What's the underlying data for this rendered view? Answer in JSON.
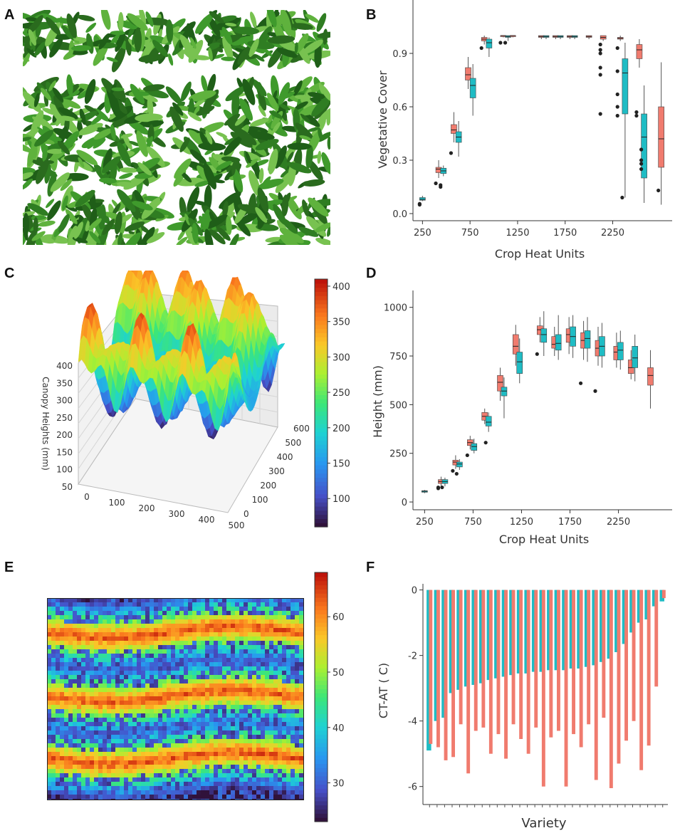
{
  "panel_letters": [
    "A",
    "B",
    "C",
    "D",
    "E",
    "F"
  ],
  "colors": {
    "red": "#f07b6e",
    "teal": "#1fbcc4",
    "leaf": "#3d8b2a",
    "leaf_dark": "#2a6b1e"
  },
  "chart_data": [
    {
      "panel": "B",
      "type": "box",
      "ylabel": "Vegetative Cover",
      "xlabel": "Crop Heat Units",
      "xticks": [
        "250",
        "750",
        "1250",
        "1750",
        "2250"
      ],
      "xtick_values": [
        250,
        750,
        1250,
        1750,
        2250
      ],
      "yticks": [
        "0.0",
        "0.3",
        "0.6",
        "0.9"
      ],
      "ytick_values": [
        0,
        0.3,
        0.6,
        0.9
      ],
      "xlim": [
        150,
        2830
      ],
      "ylim": [
        -0.04,
        1.16
      ],
      "series_colors": [
        "#f07b6e",
        "#1fbcc4"
      ],
      "boxes": [
        {
          "x": 250,
          "s": 1,
          "min": 0.07,
          "q1": 0.075,
          "med": 0.08,
          "q3": 0.09,
          "max": 0.1,
          "out": [
            0.05,
            0.055
          ]
        },
        {
          "x": 420,
          "s": 0,
          "min": 0.2,
          "q1": 0.23,
          "med": 0.25,
          "q3": 0.26,
          "max": 0.3,
          "out": [
            0.17
          ]
        },
        {
          "x": 470,
          "s": 1,
          "min": 0.21,
          "q1": 0.225,
          "med": 0.24,
          "q3": 0.255,
          "max": 0.27,
          "out": [
            0.15,
            0.16
          ]
        },
        {
          "x": 580,
          "s": 0,
          "min": 0.4,
          "q1": 0.45,
          "med": 0.47,
          "q3": 0.5,
          "max": 0.57,
          "out": [
            0.34
          ]
        },
        {
          "x": 630,
          "s": 1,
          "min": 0.32,
          "q1": 0.4,
          "med": 0.43,
          "q3": 0.46,
          "max": 0.52,
          "out": []
        },
        {
          "x": 730,
          "s": 0,
          "min": 0.7,
          "q1": 0.75,
          "med": 0.78,
          "q3": 0.82,
          "max": 0.88,
          "out": []
        },
        {
          "x": 780,
          "s": 1,
          "min": 0.55,
          "q1": 0.65,
          "med": 0.72,
          "q3": 0.76,
          "max": 0.84,
          "out": []
        },
        {
          "x": 900,
          "s": 0,
          "min": 0.95,
          "q1": 0.97,
          "med": 0.98,
          "q3": 0.99,
          "max": 1.0,
          "out": [
            0.93
          ]
        },
        {
          "x": 950,
          "s": 1,
          "min": 0.88,
          "q1": 0.93,
          "med": 0.96,
          "q3": 0.98,
          "max": 0.99,
          "out": []
        },
        {
          "x": 1100,
          "s": 0,
          "min": 0.99,
          "q1": 0.995,
          "med": 1.0,
          "q3": 1.0,
          "max": 1.0,
          "out": [
            0.96
          ]
        },
        {
          "x": 1150,
          "s": 1,
          "min": 0.97,
          "q1": 0.99,
          "med": 0.995,
          "q3": 1.0,
          "max": 1.0,
          "out": [
            0.96
          ]
        },
        {
          "x": 1200,
          "s": 0,
          "min": 0.99,
          "q1": 0.995,
          "med": 1.0,
          "q3": 1.0,
          "max": 1.0,
          "out": []
        },
        {
          "x": 1500,
          "s": 0,
          "min": 0.98,
          "q1": 0.99,
          "med": 0.995,
          "q3": 1.0,
          "max": 1.0,
          "out": []
        },
        {
          "x": 1550,
          "s": 1,
          "min": 0.98,
          "q1": 0.99,
          "med": 0.995,
          "q3": 1.0,
          "max": 1.0,
          "out": []
        },
        {
          "x": 1650,
          "s": 0,
          "min": 0.98,
          "q1": 0.99,
          "med": 0.995,
          "q3": 1.0,
          "max": 1.0,
          "out": []
        },
        {
          "x": 1700,
          "s": 1,
          "min": 0.98,
          "q1": 0.99,
          "med": 0.995,
          "q3": 1.0,
          "max": 1.0,
          "out": []
        },
        {
          "x": 1800,
          "s": 0,
          "min": 0.98,
          "q1": 0.99,
          "med": 0.995,
          "q3": 1.0,
          "max": 1.0,
          "out": []
        },
        {
          "x": 1850,
          "s": 1,
          "min": 0.98,
          "q1": 0.99,
          "med": 0.995,
          "q3": 1.0,
          "max": 1.0,
          "out": []
        },
        {
          "x": 2000,
          "s": 0,
          "min": 0.98,
          "q1": 0.99,
          "med": 0.995,
          "q3": 1.0,
          "max": 1.0,
          "out": []
        },
        {
          "x": 2150,
          "s": 0,
          "min": 0.97,
          "q1": 0.98,
          "med": 0.99,
          "q3": 1.0,
          "max": 1.0,
          "out": [
            0.95,
            0.92,
            0.9,
            0.82,
            0.78,
            0.56
          ]
        },
        {
          "x": 2330,
          "s": 0,
          "min": 0.97,
          "q1": 0.98,
          "med": 0.985,
          "q3": 0.99,
          "max": 1.0,
          "out": [
            0.93,
            0.8,
            0.67,
            0.6,
            0.55
          ]
        },
        {
          "x": 2380,
          "s": 1,
          "min": 0.09,
          "q1": 0.56,
          "med": 0.79,
          "q3": 0.87,
          "max": 0.96,
          "out": [
            0.09
          ]
        },
        {
          "x": 2530,
          "s": 0,
          "min": 0.82,
          "q1": 0.87,
          "med": 0.92,
          "q3": 0.95,
          "max": 0.98,
          "out": [
            0.57,
            0.55
          ]
        },
        {
          "x": 2580,
          "s": 1,
          "min": 0.06,
          "q1": 0.2,
          "med": 0.43,
          "q3": 0.56,
          "max": 0.72,
          "out": [
            0.36,
            0.3,
            0.28,
            0.25
          ]
        },
        {
          "x": 2760,
          "s": 0,
          "min": 0.05,
          "q1": 0.26,
          "med": 0.42,
          "q3": 0.6,
          "max": 0.85,
          "out": [
            0.13
          ]
        }
      ]
    },
    {
      "panel": "C",
      "type": "surface3d",
      "zlabel": "Canopy Heights (mm)",
      "zticks": [
        "50",
        "100",
        "150",
        "200",
        "250",
        "300",
        "350",
        "400"
      ],
      "xticks": [
        "0",
        "100",
        "200",
        "300",
        "400",
        "500"
      ],
      "yticks": [
        "0",
        "100",
        "200",
        "300",
        "400",
        "500",
        "600"
      ],
      "colorbar_ticks": [
        "100",
        "150",
        "200",
        "250",
        "300",
        "350",
        "400"
      ],
      "colorbar_range": [
        60,
        410
      ]
    },
    {
      "panel": "D",
      "type": "box",
      "ylabel": "Height (mm)",
      "xlabel": "Crop Heat Units",
      "xticks": [
        "250",
        "750",
        "1250",
        "1750",
        "2250"
      ],
      "xtick_values": [
        250,
        750,
        1250,
        1750,
        2250
      ],
      "yticks": [
        "0",
        "250",
        "500",
        "750",
        "1000"
      ],
      "ytick_values": [
        0,
        250,
        500,
        750,
        1000
      ],
      "xlim": [
        130,
        2760
      ],
      "ylim": [
        -40,
        1050
      ],
      "series_colors": [
        "#f07b6e",
        "#1fbcc4"
      ],
      "boxes": [
        {
          "x": 250,
          "s": 1,
          "min": 45,
          "q1": 50,
          "med": 55,
          "q3": 58,
          "max": 62,
          "out": []
        },
        {
          "x": 420,
          "s": 0,
          "min": 80,
          "q1": 95,
          "med": 105,
          "q3": 115,
          "max": 130,
          "out": [
            75,
            70
          ]
        },
        {
          "x": 460,
          "s": 1,
          "min": 80,
          "q1": 95,
          "med": 105,
          "q3": 115,
          "max": 125,
          "out": [
            75
          ]
        },
        {
          "x": 570,
          "s": 0,
          "min": 170,
          "q1": 190,
          "med": 205,
          "q3": 215,
          "max": 240,
          "out": [
            160
          ]
        },
        {
          "x": 610,
          "s": 1,
          "min": 165,
          "q1": 180,
          "med": 195,
          "q3": 205,
          "max": 220,
          "out": [
            145
          ]
        },
        {
          "x": 720,
          "s": 0,
          "min": 270,
          "q1": 290,
          "med": 305,
          "q3": 320,
          "max": 340,
          "out": [
            240
          ]
        },
        {
          "x": 760,
          "s": 1,
          "min": 250,
          "q1": 265,
          "med": 285,
          "q3": 300,
          "max": 325,
          "out": []
        },
        {
          "x": 870,
          "s": 0,
          "min": 400,
          "q1": 420,
          "med": 440,
          "q3": 460,
          "max": 480,
          "out": []
        },
        {
          "x": 910,
          "s": 1,
          "min": 360,
          "q1": 390,
          "med": 410,
          "q3": 440,
          "max": 460,
          "out": [
            305
          ]
        },
        {
          "x": 1030,
          "s": 0,
          "min": 520,
          "q1": 570,
          "med": 615,
          "q3": 650,
          "max": 690,
          "out": []
        },
        {
          "x": 1070,
          "s": 1,
          "min": 430,
          "q1": 545,
          "med": 570,
          "q3": 590,
          "max": 640,
          "out": []
        },
        {
          "x": 1190,
          "s": 0,
          "min": 700,
          "q1": 760,
          "med": 800,
          "q3": 860,
          "max": 910,
          "out": []
        },
        {
          "x": 1230,
          "s": 1,
          "min": 610,
          "q1": 660,
          "med": 720,
          "q3": 770,
          "max": 840,
          "out": []
        },
        {
          "x": 1440,
          "s": 0,
          "min": 820,
          "q1": 860,
          "med": 885,
          "q3": 905,
          "max": 950,
          "out": [
            760
          ]
        },
        {
          "x": 1480,
          "s": 1,
          "min": 750,
          "q1": 820,
          "med": 860,
          "q3": 890,
          "max": 980,
          "out": []
        },
        {
          "x": 1590,
          "s": 0,
          "min": 750,
          "q1": 790,
          "med": 810,
          "q3": 850,
          "max": 900,
          "out": []
        },
        {
          "x": 1630,
          "s": 1,
          "min": 730,
          "q1": 780,
          "med": 815,
          "q3": 860,
          "max": 960,
          "out": []
        },
        {
          "x": 1740,
          "s": 0,
          "min": 760,
          "q1": 820,
          "med": 860,
          "q3": 890,
          "max": 950,
          "out": []
        },
        {
          "x": 1780,
          "s": 1,
          "min": 740,
          "q1": 800,
          "med": 850,
          "q3": 900,
          "max": 960,
          "out": []
        },
        {
          "x": 1890,
          "s": 0,
          "min": 730,
          "q1": 790,
          "med": 830,
          "q3": 870,
          "max": 930,
          "out": [
            610
          ]
        },
        {
          "x": 1930,
          "s": 1,
          "min": 720,
          "q1": 790,
          "med": 840,
          "q3": 880,
          "max": 950,
          "out": []
        },
        {
          "x": 2040,
          "s": 0,
          "min": 700,
          "q1": 750,
          "med": 790,
          "q3": 830,
          "max": 900,
          "out": [
            570
          ]
        },
        {
          "x": 2080,
          "s": 1,
          "min": 690,
          "q1": 750,
          "med": 800,
          "q3": 850,
          "max": 920,
          "out": []
        },
        {
          "x": 2230,
          "s": 0,
          "min": 690,
          "q1": 730,
          "med": 770,
          "q3": 800,
          "max": 870,
          "out": []
        },
        {
          "x": 2270,
          "s": 1,
          "min": 680,
          "q1": 730,
          "med": 780,
          "q3": 820,
          "max": 880,
          "out": []
        },
        {
          "x": 2380,
          "s": 0,
          "min": 630,
          "q1": 660,
          "med": 690,
          "q3": 730,
          "max": 780,
          "out": []
        },
        {
          "x": 2420,
          "s": 1,
          "min": 620,
          "q1": 690,
          "med": 740,
          "q3": 800,
          "max": 860,
          "out": []
        },
        {
          "x": 2580,
          "s": 0,
          "min": 480,
          "q1": 600,
          "med": 650,
          "q3": 690,
          "max": 780,
          "out": []
        }
      ]
    },
    {
      "panel": "E",
      "type": "heatmap",
      "colorbar_ticks": [
        "30",
        "40",
        "50",
        "60"
      ],
      "colorbar_range": [
        23,
        68
      ]
    },
    {
      "panel": "F",
      "type": "bar",
      "ylabel": "CT-AT ( C)",
      "xlabel": "Variety",
      "yticks": [
        "0",
        "-2",
        "-4",
        "-6"
      ],
      "ytick_values": [
        0,
        -2,
        -4,
        -6
      ],
      "ylim": [
        -6.55,
        0.1
      ],
      "series": [
        {
          "name": "teal",
          "color": "#1fbcc4",
          "values": [
            -4.9,
            -4.0,
            -3.9,
            -3.15,
            -3.05,
            -2.95,
            -2.9,
            -2.85,
            -2.75,
            -2.7,
            -2.65,
            -2.6,
            -2.55,
            -2.55,
            -2.5,
            -2.5,
            -2.45,
            -2.45,
            -2.45,
            -2.4,
            -2.4,
            -2.35,
            -2.3,
            -2.2,
            -2.1,
            -1.9,
            -1.65,
            -1.3,
            -1.0,
            -0.9,
            -0.5,
            -0.35
          ]
        },
        {
          "name": "red",
          "color": "#f07b6e",
          "values": [
            -4.7,
            -4.8,
            -5.2,
            -5.1,
            -4.1,
            -5.6,
            -4.3,
            -4.2,
            -5.0,
            -4.4,
            -5.15,
            -4.1,
            -4.55,
            -5.0,
            -4.2,
            -6.0,
            -4.5,
            -4.3,
            -6.0,
            -4.4,
            -4.8,
            -4.1,
            -5.8,
            -3.9,
            -6.05,
            -5.3,
            -4.6,
            -4.0,
            -5.5,
            -4.75,
            -2.95,
            -0.25
          ]
        }
      ]
    }
  ]
}
